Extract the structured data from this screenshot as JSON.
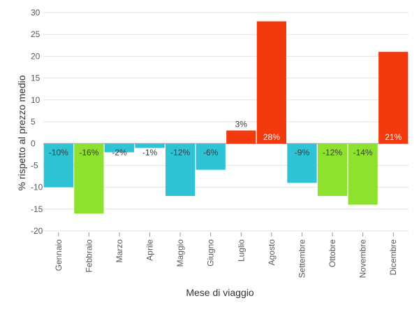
{
  "chart_data": {
    "type": "bar",
    "xlabel": "Mese di viaggio",
    "ylabel": "% rispetto al prezzo medio",
    "ylim": [
      -20,
      30
    ],
    "yticks": [
      30,
      25,
      20,
      15,
      10,
      5,
      0,
      -5,
      -10,
      -15,
      -20
    ],
    "grid": true,
    "categories": [
      "Gennaio",
      "Febbraio",
      "Marzo",
      "Aprile",
      "Maggio",
      "Giugno",
      "Luglio",
      "Agosto",
      "Settembre",
      "Ottobre",
      "Novembre",
      "Dicembre"
    ],
    "values": [
      -10,
      -16,
      -2,
      -1,
      -12,
      -6,
      3,
      28,
      -9,
      -12,
      -14,
      21
    ],
    "value_labels": [
      "-10%",
      "-16%",
      "-2%",
      "-1%",
      "-12%",
      "-6%",
      "3%",
      "28%",
      "-9%",
      "-12%",
      "-14%",
      "21%"
    ],
    "bar_colors": [
      "#2ec4d6",
      "#8ee22e",
      "#2ec4d6",
      "#2ec4d6",
      "#2ec4d6",
      "#2ec4d6",
      "#f23a0f",
      "#f23a0f",
      "#2ec4d6",
      "#8ee22e",
      "#8ee22e",
      "#f23a0f"
    ],
    "grid_color": "#e3e3e3",
    "zero_line_color": "#9a9a9a"
  }
}
